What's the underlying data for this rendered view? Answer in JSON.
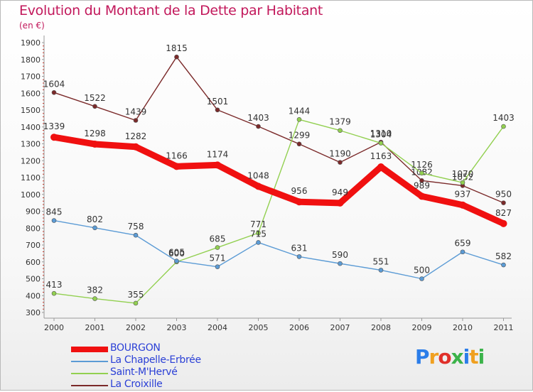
{
  "chart_data": {
    "type": "line",
    "title": "Evolution du Montant de la Dette par Habitant",
    "subtitle": "(en €)",
    "categories": [
      "2000",
      "2001",
      "2002",
      "2003",
      "2004",
      "2005",
      "2006",
      "2007",
      "2008",
      "2009",
      "2010",
      "2011"
    ],
    "ylim": [
      300,
      1900
    ],
    "yticks": [
      300,
      400,
      500,
      600,
      700,
      800,
      900,
      1000,
      1100,
      1200,
      1300,
      1400,
      1500,
      1600,
      1700,
      1800,
      1900
    ],
    "grid": false,
    "legend_position": "bottom-left",
    "series": [
      {
        "name": "BOURGON",
        "color": "#f01010",
        "values": [
          1339,
          1298,
          1282,
          1166,
          1174,
          1048,
          956,
          949,
          1163,
          989,
          937,
          827
        ]
      },
      {
        "name": "La Chapelle-Erbrée",
        "color": "#5b9bd5",
        "values": [
          845,
          802,
          758,
          605,
          571,
          715,
          631,
          590,
          551,
          500,
          659,
          582
        ]
      },
      {
        "name": "Saint-M'Hervé",
        "color": "#92d050",
        "values": [
          413,
          382,
          355,
          600,
          685,
          771,
          1444,
          1379,
          1304,
          1126,
          1070,
          1403
        ]
      },
      {
        "name": "La Croixille",
        "color": "#7b2a2a",
        "values": [
          1604,
          1522,
          1439,
          1815,
          1501,
          1403,
          1299,
          1190,
          1310,
          1082,
          1052,
          950
        ]
      }
    ]
  },
  "logo": {
    "letters": [
      "P",
      "r",
      "o",
      "x",
      "i",
      "t",
      "i"
    ],
    "colors": [
      "#2b7de9",
      "#f0a020",
      "#e0302a",
      "#3bb34a",
      "#2b7de9",
      "#f0a020",
      "#3bb34a"
    ]
  }
}
